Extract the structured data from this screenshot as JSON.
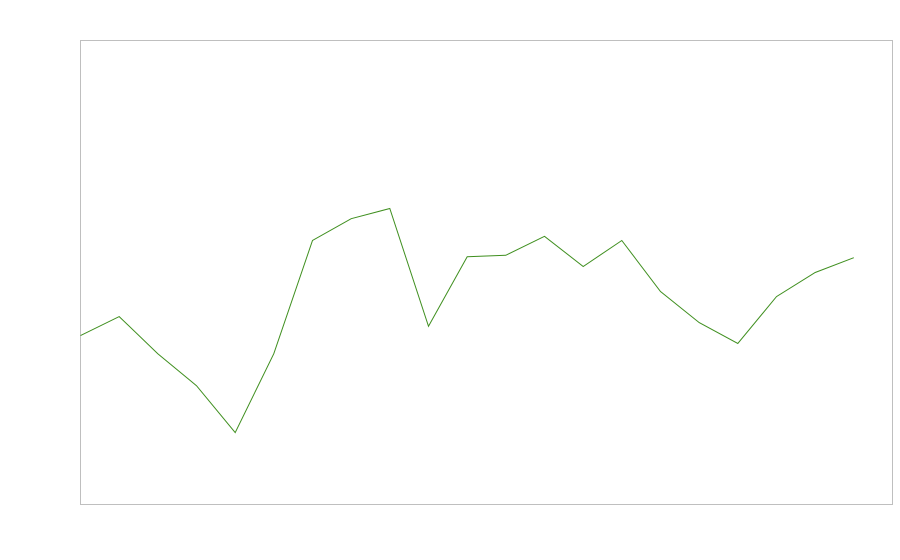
{
  "chart_data": {
    "type": "line",
    "title": "",
    "xlabel": "",
    "ylabel": "",
    "x": [
      0,
      1,
      2,
      3,
      4,
      5,
      6,
      7,
      8,
      9,
      10,
      11,
      12,
      13,
      14,
      15,
      16,
      17,
      18,
      19,
      20
    ],
    "series": [
      {
        "values": [
          36.4,
          40.5,
          32.5,
          25.6,
          15.5,
          32.5,
          56.9,
          61.6,
          63.8,
          38.4,
          53.4,
          53.7,
          57.8,
          51.3,
          56.9,
          45.9,
          39.2,
          34.7,
          44.8,
          50.0,
          53.2
        ],
        "color": "#3f8f1f"
      }
    ],
    "xlim": [
      0,
      21
    ],
    "ylim": [
      0,
      100
    ],
    "grid": false,
    "legend": "none",
    "frame_color": "#bfbfbf"
  }
}
